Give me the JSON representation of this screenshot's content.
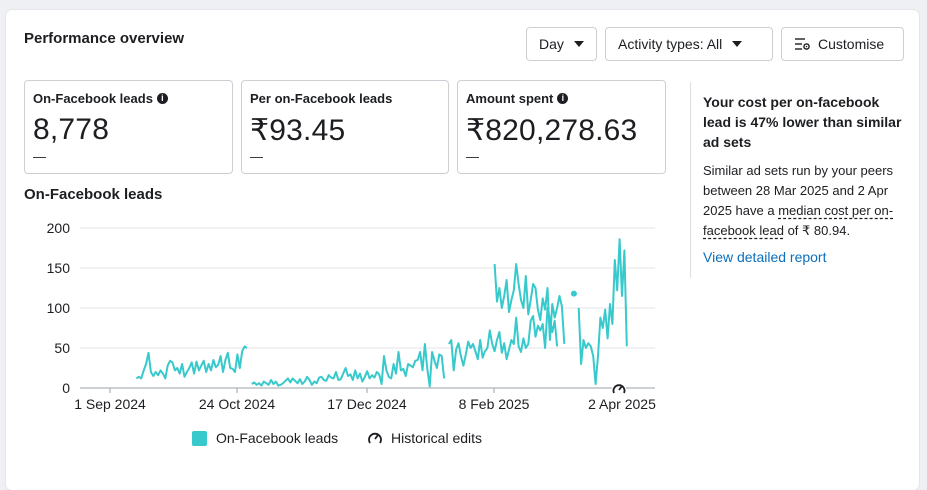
{
  "header": {
    "title": "Performance overview",
    "day_label": "Day",
    "activity_label": "Activity types: All",
    "customise_label": "Customise"
  },
  "metrics": [
    {
      "label": "On-Facebook leads",
      "value": "8,778",
      "delta": "—",
      "has_info": true
    },
    {
      "label": "Per on-Facebook leads",
      "value": "₹93.45",
      "delta": "—",
      "has_info": false
    },
    {
      "label": "Amount spent",
      "value": "₹820,278.63",
      "delta": "—",
      "has_info": true
    }
  ],
  "insight": {
    "heading": "Your cost per on-facebook lead is 47% lower than similar ad sets",
    "body_pre": "Similar ad sets run by your peers between 28 Mar 2025 and 2 Apr 2025 have a",
    "body_link": "median cost per on-facebook lead",
    "body_post": "of ₹ 80.94.",
    "link": "View detailed report"
  },
  "chart_data": {
    "type": "line",
    "title": "On-Facebook leads",
    "ylim": [
      0,
      200
    ],
    "yticks": [
      0,
      50,
      100,
      150,
      200
    ],
    "xticks": [
      "1 Sep 2024",
      "24 Oct 2024",
      "17 Dec 2024",
      "8 Feb 2025",
      "2 Apr 2025"
    ],
    "color": "#37c9cb",
    "series": [
      {
        "name": "On-Facebook leads",
        "segments": [
          {
            "start": "2024-09-12",
            "values": [
              12,
              14,
              12,
              22,
              30,
              44,
              20,
              15,
              20,
              16,
              22,
              18,
              12,
              28,
              34,
              32,
              22,
              25,
              18,
              30,
              14,
              20,
              25,
              32,
              18,
              33,
              22,
              28,
              34,
              20,
              30,
              22,
              35,
              26,
              29,
              40,
              20,
              35,
              44,
              25,
              24,
              20,
              42,
              25,
              46,
              52,
              50
            ]
          },
          {
            "start": "2024-10-30",
            "values": [
              5,
              7,
              4,
              6,
              3,
              8,
              6,
              4,
              10,
              5,
              8,
              3,
              4,
              6,
              9,
              12,
              7,
              12,
              9,
              6,
              11,
              5,
              8,
              14,
              10,
              4,
              8,
              6,
              13,
              14,
              10,
              9,
              16,
              13,
              12,
              20,
              10,
              11,
              18,
              25,
              15,
              17,
              10,
              22,
              12,
              18,
              8,
              14,
              21,
              12,
              16,
              13,
              20,
              17,
              5,
              40,
              22,
              14,
              12,
              30,
              18,
              45,
              22,
              24,
              15,
              30,
              28,
              26,
              34,
              35,
              45,
              22,
              55,
              24,
              2,
              45,
              34,
              25,
              42,
              40,
              12
            ]
          },
          {
            "start": "2025-01-20",
            "values": [
              55,
              60,
              22,
              48,
              56,
              40,
              28,
              42,
              58,
              50,
              55,
              46,
              36,
              60,
              38,
              46,
              50,
              72,
              55,
              46,
              60,
              70,
              44,
              56,
              36,
              48,
              60,
              55,
              88,
              52,
              45,
              62,
              50,
              55,
              84,
              90,
              64,
              78,
              72,
              80,
              50,
              100,
              86,
              70,
              84,
              52
            ]
          },
          {
            "start": "2025-02-08",
            "values": [
              155,
              108,
              125,
              100,
              115,
              135,
              95,
              110,
              122,
              155,
              130,
              110,
              100,
              140,
              92,
              110,
              130,
              125,
              98,
              85,
              112,
              98,
              125,
              60,
              105,
              88,
              100,
              115,
              102,
              55
            ]
          },
          {
            "start": "2025-03-13",
            "values": [
              118
            ]
          },
          {
            "start": "2025-03-15",
            "values": [
              100,
              30,
              60,
              50,
              56,
              52,
              40,
              5,
              40,
              88,
              75,
              98,
              62,
              105,
              80,
              160,
              122,
              186,
              115,
              172,
              52
            ]
          }
        ]
      }
    ],
    "legend": [
      "On-Facebook leads",
      "Historical edits"
    ]
  }
}
